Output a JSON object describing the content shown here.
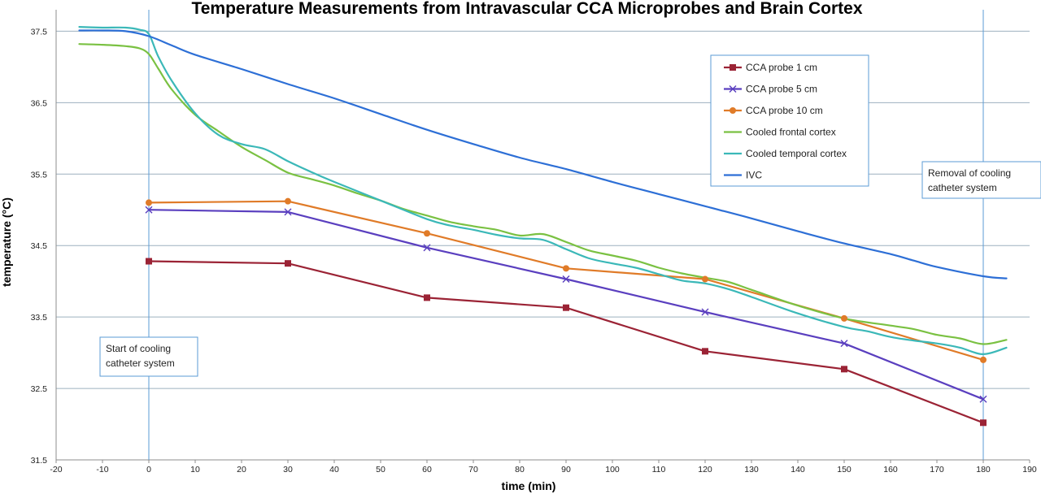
{
  "chart_data": {
    "type": "line",
    "title": "Temperature Measurements from Intravascular CCA Microprobes and Brain Cortex",
    "xlabel": "time (min)",
    "ylabel": "temperature (°C)",
    "xlim": [
      -20,
      190
    ],
    "ylim": [
      31.5,
      37.8
    ],
    "x_ticks": [
      "-20",
      "-10",
      "0",
      "10",
      "20",
      "30",
      "40",
      "50",
      "60",
      "70",
      "80",
      "90",
      "100",
      "110",
      "120",
      "130",
      "140",
      "150",
      "160",
      "170",
      "180",
      "190"
    ],
    "y_ticks": [
      "31.5",
      "32.5",
      "33.5",
      "34.5",
      "35.5",
      "36.5",
      "37.5"
    ],
    "grid": "horizontal",
    "legend_position": "top-right",
    "series": [
      {
        "name": "CCA probe 1 cm",
        "color": "#9b2335",
        "marker": "square",
        "points": [
          [
            0,
            34.28
          ],
          [
            30,
            34.25
          ],
          [
            60,
            33.77
          ],
          [
            90,
            33.63
          ],
          [
            120,
            33.02
          ],
          [
            150,
            32.77
          ],
          [
            180,
            32.02
          ]
        ]
      },
      {
        "name": "CCA probe 5 cm",
        "color": "#5a3fbf",
        "marker": "x",
        "points": [
          [
            0,
            35.0
          ],
          [
            30,
            34.97
          ],
          [
            60,
            34.47
          ],
          [
            90,
            34.03
          ],
          [
            120,
            33.57
          ],
          [
            150,
            33.13
          ],
          [
            180,
            32.35
          ]
        ]
      },
      {
        "name": "CCA probe 10 cm",
        "color": "#e07b28",
        "marker": "circle",
        "points": [
          [
            0,
            35.1
          ],
          [
            30,
            35.12
          ],
          [
            60,
            34.67
          ],
          [
            90,
            34.18
          ],
          [
            120,
            34.03
          ],
          [
            150,
            33.48
          ],
          [
            180,
            32.9
          ]
        ]
      },
      {
        "name": "Cooled frontal cortex",
        "color": "#7ac142",
        "marker": "none",
        "points": [
          [
            -15,
            37.32
          ],
          [
            -10,
            37.31
          ],
          [
            -5,
            37.29
          ],
          [
            -2,
            37.26
          ],
          [
            0,
            37.18
          ],
          [
            2,
            36.98
          ],
          [
            5,
            36.68
          ],
          [
            10,
            36.33
          ],
          [
            15,
            36.1
          ],
          [
            20,
            35.88
          ],
          [
            25,
            35.7
          ],
          [
            30,
            35.52
          ],
          [
            35,
            35.43
          ],
          [
            40,
            35.34
          ],
          [
            45,
            35.23
          ],
          [
            50,
            35.13
          ],
          [
            55,
            35.01
          ],
          [
            60,
            34.92
          ],
          [
            65,
            34.83
          ],
          [
            70,
            34.77
          ],
          [
            75,
            34.72
          ],
          [
            80,
            34.64
          ],
          [
            85,
            34.66
          ],
          [
            90,
            34.55
          ],
          [
            95,
            34.43
          ],
          [
            100,
            34.36
          ],
          [
            105,
            34.29
          ],
          [
            110,
            34.19
          ],
          [
            115,
            34.11
          ],
          [
            120,
            34.05
          ],
          [
            125,
            33.99
          ],
          [
            130,
            33.88
          ],
          [
            140,
            33.66
          ],
          [
            150,
            33.48
          ],
          [
            160,
            33.38
          ],
          [
            165,
            33.33
          ],
          [
            170,
            33.25
          ],
          [
            175,
            33.2
          ],
          [
            180,
            33.12
          ],
          [
            185,
            33.18
          ]
        ]
      },
      {
        "name": "Cooled temporal cortex",
        "color": "#3bb8b8",
        "marker": "none",
        "points": [
          [
            -15,
            37.56
          ],
          [
            -10,
            37.55
          ],
          [
            -5,
            37.55
          ],
          [
            -2,
            37.52
          ],
          [
            0,
            37.46
          ],
          [
            2,
            37.15
          ],
          [
            5,
            36.8
          ],
          [
            10,
            36.35
          ],
          [
            15,
            36.05
          ],
          [
            20,
            35.92
          ],
          [
            25,
            35.85
          ],
          [
            30,
            35.68
          ],
          [
            35,
            35.53
          ],
          [
            40,
            35.39
          ],
          [
            50,
            35.13
          ],
          [
            60,
            34.87
          ],
          [
            65,
            34.78
          ],
          [
            70,
            34.72
          ],
          [
            75,
            34.65
          ],
          [
            80,
            34.6
          ],
          [
            85,
            34.58
          ],
          [
            90,
            34.45
          ],
          [
            95,
            34.32
          ],
          [
            100,
            34.25
          ],
          [
            105,
            34.19
          ],
          [
            110,
            34.1
          ],
          [
            115,
            34.01
          ],
          [
            120,
            33.97
          ],
          [
            125,
            33.89
          ],
          [
            130,
            33.78
          ],
          [
            140,
            33.55
          ],
          [
            150,
            33.36
          ],
          [
            155,
            33.3
          ],
          [
            160,
            33.22
          ],
          [
            165,
            33.17
          ],
          [
            170,
            33.13
          ],
          [
            175,
            33.07
          ],
          [
            180,
            32.98
          ],
          [
            185,
            33.07
          ]
        ]
      },
      {
        "name": "IVC",
        "color": "#2d6fd6",
        "marker": "none",
        "points": [
          [
            -15,
            37.51
          ],
          [
            -10,
            37.51
          ],
          [
            -5,
            37.5
          ],
          [
            0,
            37.43
          ],
          [
            5,
            37.3
          ],
          [
            10,
            37.17
          ],
          [
            20,
            36.97
          ],
          [
            30,
            36.76
          ],
          [
            40,
            36.56
          ],
          [
            50,
            36.34
          ],
          [
            60,
            36.12
          ],
          [
            70,
            35.92
          ],
          [
            80,
            35.73
          ],
          [
            90,
            35.57
          ],
          [
            100,
            35.39
          ],
          [
            110,
            35.22
          ],
          [
            120,
            35.05
          ],
          [
            130,
            34.88
          ],
          [
            140,
            34.7
          ],
          [
            150,
            34.53
          ],
          [
            160,
            34.38
          ],
          [
            165,
            34.29
          ],
          [
            170,
            34.2
          ],
          [
            180,
            34.07
          ],
          [
            185,
            34.04
          ]
        ]
      }
    ],
    "annotations": [
      {
        "text_lines": [
          "Start of cooling",
          "catheter system"
        ],
        "x": 0
      },
      {
        "text_lines": [
          "Removal of cooling",
          "catheter system"
        ],
        "x": 180
      }
    ]
  }
}
